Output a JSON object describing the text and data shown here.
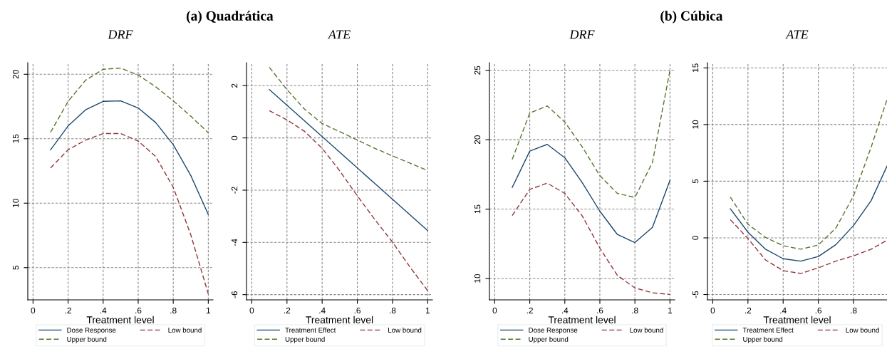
{
  "chart_data": [
    {
      "type": "line",
      "title": "DRF",
      "annotations": [
        "(a) Quadrática"
      ],
      "xlabel": "Treatment level",
      "xlim": [
        -0.03,
        1.027
      ],
      "xticks": [
        0,
        {
          "value": 0.2,
          "label": ".2"
        },
        {
          "value": 0.4,
          "label": ".4"
        },
        {
          "value": 0.6,
          "label": ".6"
        },
        {
          "value": 0.8,
          "label": ".8"
        },
        1
      ],
      "ylim": [
        2.5,
        20.9
      ],
      "yticks": [
        5,
        10,
        15,
        20
      ],
      "grid": true,
      "legend": "bottom",
      "x": [
        0.1,
        0.2,
        0.3,
        0.4,
        0.5,
        0.6,
        0.7,
        0.8,
        0.9,
        1
      ],
      "series": [
        {
          "name": "Dose Response",
          "color": "#1a476f",
          "line_style": "solid",
          "values": [
            14.14,
            15.99,
            17.24,
            17.9,
            17.94,
            17.39,
            16.25,
            14.54,
            12.15,
            9.12
          ]
        },
        {
          "name": "Upper bound",
          "color": "#55752f",
          "line_style": "dashed",
          "values": [
            15.5,
            17.9,
            19.54,
            20.39,
            20.48,
            19.94,
            19.03,
            17.94,
            16.75,
            15.46
          ]
        },
        {
          "name": "Low bound",
          "color": "#90353b",
          "line_style": "dashed",
          "values": [
            12.74,
            14.14,
            14.9,
            15.4,
            15.4,
            14.82,
            13.62,
            11.23,
            7.55,
            2.96
          ]
        }
      ]
    },
    {
      "type": "line",
      "title": "ATE",
      "xlabel": "Treatment level",
      "xlim": [
        -0.03,
        1.027
      ],
      "xticks": [
        0,
        {
          "value": 0.2,
          "label": ".2"
        },
        {
          "value": 0.4,
          "label": ".4"
        },
        {
          "value": 0.6,
          "label": ".6"
        },
        {
          "value": 0.8,
          "label": ".8"
        },
        1
      ],
      "ylim": [
        -6.2,
        2.88
      ],
      "yticks": [
        {
          "value": -6,
          "label": "-6"
        },
        {
          "value": -4,
          "label": "-4"
        },
        {
          "value": -2,
          "label": "-2"
        },
        0,
        2
      ],
      "grid": true,
      "legend": "bottom",
      "x": [
        0.1,
        0.2,
        0.3,
        0.4,
        0.5,
        0.6,
        0.7,
        0.8,
        0.9,
        1
      ],
      "series": [
        {
          "name": "Treatment Effect",
          "color": "#1a476f",
          "line_style": "solid",
          "values": [
            1.85,
            1.25,
            0.65,
            0.05,
            -0.55,
            -1.15,
            -1.75,
            -2.35,
            -2.95,
            -3.55
          ]
        },
        {
          "name": "Upper bound",
          "color": "#55752f",
          "line_style": "dashed",
          "values": [
            2.7,
            1.85,
            1.1,
            0.55,
            0.24,
            -0.08,
            -0.4,
            -0.69,
            -0.97,
            -1.25
          ]
        },
        {
          "name": "Low bound",
          "color": "#90353b",
          "line_style": "dashed",
          "values": [
            1.04,
            0.69,
            0.25,
            -0.4,
            -1.26,
            -2.22,
            -3.13,
            -3.99,
            -4.95,
            -5.85
          ]
        }
      ]
    },
    {
      "type": "line",
      "title": "DRF",
      "annotations": [
        "(b) Cúbica"
      ],
      "xlabel": "Treatment level",
      "xlim": [
        -0.03,
        1.027
      ],
      "xticks": [
        0,
        {
          "value": 0.2,
          "label": ".2"
        },
        {
          "value": 0.4,
          "label": ".4"
        },
        {
          "value": 0.6,
          "label": ".6"
        },
        {
          "value": 0.8,
          "label": ".8"
        },
        1
      ],
      "ylim": [
        8.46,
        25.55
      ],
      "yticks": [
        10,
        15,
        20,
        25
      ],
      "grid": true,
      "legend": "bottom",
      "x": [
        0.1,
        0.2,
        0.3,
        0.4,
        0.5,
        0.6,
        0.7,
        0.8,
        0.9,
        1
      ],
      "series": [
        {
          "name": "Dose Response",
          "color": "#1a476f",
          "line_style": "solid",
          "values": [
            16.56,
            19.18,
            19.66,
            18.7,
            16.9,
            14.85,
            13.17,
            12.59,
            13.68,
            17.07
          ]
        },
        {
          "name": "Upper bound",
          "color": "#55752f",
          "line_style": "dashed",
          "values": [
            18.58,
            21.92,
            22.43,
            21.27,
            19.47,
            17.41,
            16.13,
            15.84,
            18.36,
            25
          ]
        },
        {
          "name": "Low bound",
          "color": "#90353b",
          "line_style": "dashed",
          "values": [
            14.54,
            16.42,
            16.87,
            16.13,
            14.5,
            12.19,
            10.22,
            9.32,
            8.97,
            8.85
          ]
        }
      ]
    },
    {
      "type": "line",
      "title": "ATE",
      "xlabel": "Treatment level",
      "xlim": [
        -0.03,
        0.99
      ],
      "xticks": [
        0,
        {
          "value": 0.2,
          "label": ".2"
        },
        {
          "value": 0.4,
          "label": ".4"
        },
        {
          "value": 0.6,
          "label": ".6"
        },
        {
          "value": 0.8,
          "label": ".8"
        }
      ],
      "ylim": [
        -5.47,
        15.46
      ],
      "yticks": [
        {
          "value": -5,
          "label": "-5"
        },
        0,
        5,
        10,
        15
      ],
      "grid": true,
      "legend": "bottom",
      "x": [
        0.1,
        0.2,
        0.3,
        0.4,
        0.5,
        0.6,
        0.7,
        0.8,
        0.9,
        0.99
      ],
      "series": [
        {
          "name": "Treatment Effect",
          "color": "#1a476f",
          "line_style": "solid",
          "values": [
            2.56,
            0.5,
            -1.0,
            -1.84,
            -2.05,
            -1.64,
            -0.59,
            1.09,
            3.29,
            6.33
          ]
        },
        {
          "name": "Upper bound",
          "color": "#55752f",
          "line_style": "dashed",
          "values": [
            3.6,
            1.2,
            0.04,
            -0.69,
            -1.0,
            -0.63,
            0.88,
            3.71,
            8.01,
            12.2
          ]
        },
        {
          "name": "Low bound",
          "color": "#90353b",
          "line_style": "dashed",
          "values": [
            1.61,
            -0.06,
            -1.95,
            -2.89,
            -3.14,
            -2.64,
            -2.05,
            -1.59,
            -1.0,
            -0.21
          ]
        }
      ]
    }
  ]
}
